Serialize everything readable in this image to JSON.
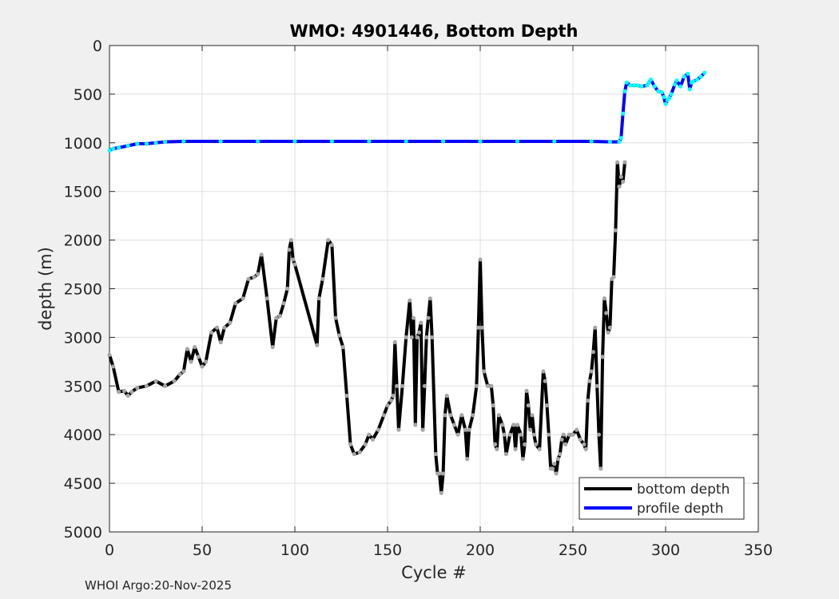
{
  "chart_data": {
    "type": "line",
    "title": "WMO: 4901446, Bottom Depth",
    "xlabel": "Cycle #",
    "ylabel": "depth (m)",
    "xlim": [
      0,
      350
    ],
    "ylim": [
      0,
      5000
    ],
    "y_reversed": true,
    "grid": true,
    "xticks": [
      0,
      50,
      100,
      150,
      200,
      250,
      300,
      350
    ],
    "yticks": [
      0,
      500,
      1000,
      1500,
      2000,
      2500,
      3000,
      3500,
      4000,
      4500,
      5000
    ],
    "legend": {
      "location": "bottom-right",
      "entries": [
        {
          "label": "bottom depth",
          "color": "#000000"
        },
        {
          "label": "profile depth",
          "color": "#0000ff"
        }
      ]
    },
    "series": [
      {
        "name": "bottom depth",
        "color": "#000000",
        "marker_color": "#a6a6a6",
        "points": [
          [
            0,
            3180
          ],
          [
            2,
            3300
          ],
          [
            5,
            3560
          ],
          [
            8,
            3550
          ],
          [
            10,
            3600
          ],
          [
            12,
            3560
          ],
          [
            15,
            3520
          ],
          [
            20,
            3500
          ],
          [
            25,
            3450
          ],
          [
            30,
            3500
          ],
          [
            35,
            3450
          ],
          [
            38,
            3380
          ],
          [
            40,
            3350
          ],
          [
            42,
            3120
          ],
          [
            44,
            3250
          ],
          [
            46,
            3100
          ],
          [
            48,
            3200
          ],
          [
            50,
            3300
          ],
          [
            52,
            3250
          ],
          [
            55,
            2950
          ],
          [
            58,
            2900
          ],
          [
            60,
            3050
          ],
          [
            62,
            2900
          ],
          [
            65,
            2850
          ],
          [
            68,
            2650
          ],
          [
            72,
            2600
          ],
          [
            75,
            2400
          ],
          [
            78,
            2380
          ],
          [
            80,
            2350
          ],
          [
            82,
            2150
          ],
          [
            85,
            2600
          ],
          [
            88,
            3100
          ],
          [
            90,
            2800
          ],
          [
            92,
            2780
          ],
          [
            94,
            2650
          ],
          [
            96,
            2500
          ],
          [
            97,
            2100
          ],
          [
            98,
            2000
          ],
          [
            99,
            2200
          ],
          [
            100,
            2250
          ],
          [
            112,
            3080
          ],
          [
            113,
            2600
          ],
          [
            115,
            2400
          ],
          [
            118,
            2000
          ],
          [
            120,
            2050
          ],
          [
            122,
            2800
          ],
          [
            124,
            2980
          ],
          [
            126,
            3100
          ],
          [
            128,
            3600
          ],
          [
            130,
            4100
          ],
          [
            132,
            4200
          ],
          [
            135,
            4180
          ],
          [
            138,
            4100
          ],
          [
            140,
            4000
          ],
          [
            142,
            4050
          ],
          [
            145,
            3950
          ],
          [
            148,
            3800
          ],
          [
            150,
            3700
          ],
          [
            152,
            3650
          ],
          [
            153,
            3600
          ],
          [
            154,
            3050
          ],
          [
            155,
            3500
          ],
          [
            156,
            3950
          ],
          [
            158,
            3500
          ],
          [
            160,
            3000
          ],
          [
            162,
            2620
          ],
          [
            163,
            3000
          ],
          [
            164,
            2800
          ],
          [
            165,
            3900
          ],
          [
            166,
            3000
          ],
          [
            167,
            2950
          ],
          [
            168,
            2850
          ],
          [
            169,
            3950
          ],
          [
            170,
            3500
          ],
          [
            171,
            3000
          ],
          [
            172,
            2800
          ],
          [
            173,
            2600
          ],
          [
            174,
            3000
          ],
          [
            176,
            4200
          ],
          [
            177,
            4400
          ],
          [
            178,
            4400
          ],
          [
            179,
            4600
          ],
          [
            180,
            4400
          ],
          [
            181,
            3800
          ],
          [
            182,
            3600
          ],
          [
            184,
            3800
          ],
          [
            186,
            3900
          ],
          [
            188,
            4000
          ],
          [
            190,
            3800
          ],
          [
            192,
            3950
          ],
          [
            193,
            4250
          ],
          [
            194,
            3950
          ],
          [
            196,
            3800
          ],
          [
            198,
            3500
          ],
          [
            199,
            2900
          ],
          [
            200,
            2200
          ],
          [
            201,
            2900
          ],
          [
            202,
            3350
          ],
          [
            204,
            3500
          ],
          [
            206,
            3500
          ],
          [
            207,
            3700
          ],
          [
            208,
            4100
          ],
          [
            209,
            4150
          ],
          [
            210,
            3800
          ],
          [
            212,
            3900
          ],
          [
            213,
            4000
          ],
          [
            214,
            4200
          ],
          [
            216,
            4000
          ],
          [
            218,
            3900
          ],
          [
            219,
            4150
          ],
          [
            220,
            3900
          ],
          [
            222,
            4000
          ],
          [
            223,
            4250
          ],
          [
            224,
            4100
          ],
          [
            225,
            3550
          ],
          [
            226,
            3700
          ],
          [
            227,
            3950
          ],
          [
            228,
            3800
          ],
          [
            229,
            4000
          ],
          [
            230,
            4100
          ],
          [
            232,
            4150
          ],
          [
            234,
            3350
          ],
          [
            235,
            3450
          ],
          [
            236,
            3700
          ],
          [
            237,
            4000
          ],
          [
            238,
            4350
          ],
          [
            239,
            4350
          ],
          [
            240,
            4300
          ],
          [
            241,
            4400
          ],
          [
            242,
            4250
          ],
          [
            243,
            4200
          ],
          [
            244,
            4050
          ],
          [
            245,
            4000
          ],
          [
            246,
            4100
          ],
          [
            248,
            4000
          ],
          [
            250,
            4000
          ],
          [
            252,
            3950
          ],
          [
            254,
            4050
          ],
          [
            256,
            4100
          ],
          [
            257,
            4150
          ],
          [
            258,
            3650
          ],
          [
            259,
            3450
          ],
          [
            260,
            3350
          ],
          [
            261,
            3150
          ],
          [
            262,
            2900
          ],
          [
            263,
            3500
          ],
          [
            264,
            4000
          ],
          [
            265,
            4350
          ],
          [
            266,
            3200
          ],
          [
            267,
            2600
          ],
          [
            268,
            2750
          ],
          [
            269,
            2950
          ],
          [
            270,
            2900
          ],
          [
            271,
            2400
          ],
          [
            272,
            2380
          ],
          [
            273,
            1900
          ],
          [
            274,
            1200
          ],
          [
            275,
            1450
          ],
          [
            276,
            1350
          ],
          [
            277,
            1400
          ],
          [
            278,
            1200
          ]
        ]
      },
      {
        "name": "profile depth",
        "color": "#0000ff",
        "marker_color": "#00ffff",
        "points": [
          [
            0,
            1080
          ],
          [
            2,
            1060
          ],
          [
            5,
            1050
          ],
          [
            10,
            1030
          ],
          [
            15,
            1010
          ],
          [
            20,
            1010
          ],
          [
            25,
            1000
          ],
          [
            30,
            990
          ],
          [
            40,
            985
          ],
          [
            60,
            985
          ],
          [
            80,
            985
          ],
          [
            100,
            985
          ],
          [
            120,
            985
          ],
          [
            140,
            985
          ],
          [
            160,
            985
          ],
          [
            180,
            985
          ],
          [
            200,
            985
          ],
          [
            220,
            985
          ],
          [
            240,
            985
          ],
          [
            260,
            985
          ],
          [
            270,
            990
          ],
          [
            275,
            990
          ],
          [
            276,
            950
          ],
          [
            277,
            700
          ],
          [
            278,
            470
          ],
          [
            279,
            380
          ],
          [
            281,
            410
          ],
          [
            283,
            410
          ],
          [
            285,
            410
          ],
          [
            287,
            420
          ],
          [
            290,
            410
          ],
          [
            291,
            380
          ],
          [
            292,
            350
          ],
          [
            294,
            420
          ],
          [
            296,
            470
          ],
          [
            298,
            480
          ],
          [
            299,
            530
          ],
          [
            300,
            600
          ],
          [
            301,
            560
          ],
          [
            302,
            540
          ],
          [
            303,
            500
          ],
          [
            305,
            400
          ],
          [
            306,
            360
          ],
          [
            308,
            420
          ],
          [
            310,
            320
          ],
          [
            312,
            290
          ],
          [
            313,
            450
          ],
          [
            314,
            380
          ],
          [
            315,
            370
          ],
          [
            317,
            350
          ],
          [
            319,
            320
          ],
          [
            321,
            280
          ]
        ]
      }
    ]
  },
  "footer_text": "WHOI Argo:20-Nov-2025"
}
